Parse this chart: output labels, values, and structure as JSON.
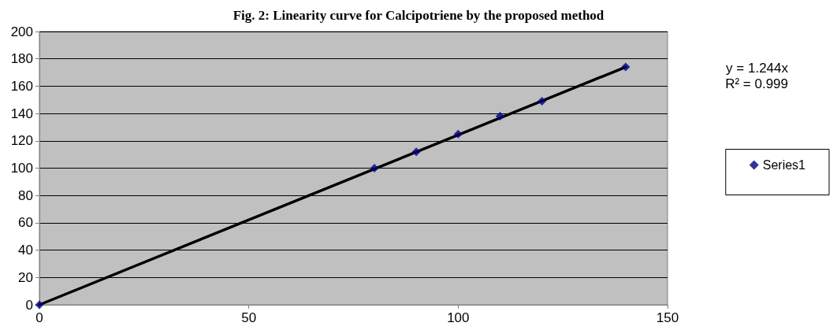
{
  "chart_data": {
    "type": "scatter",
    "title": "Fig. 2: Linearity curve for Calcipotriene by the proposed method",
    "series": [
      {
        "name": "Series1",
        "color": "#000080",
        "marker": "diamond",
        "x": [
          0,
          80,
          90,
          100,
          110,
          120,
          140
        ],
        "values": [
          0,
          100,
          112,
          125,
          138,
          149,
          174
        ]
      },
      {
        "type": "line",
        "color": "#000000",
        "marker": "none",
        "x": [
          0,
          140
        ],
        "values": [
          0,
          174
        ]
      }
    ],
    "xlim": [
      0,
      150
    ],
    "xticks": [
      0,
      50,
      100,
      150
    ],
    "ylim": [
      0,
      200
    ],
    "yticks": [
      0,
      20,
      40,
      60,
      80,
      100,
      120,
      140,
      160,
      180,
      200
    ],
    "grid": "y",
    "legend": "right",
    "annotations": [
      "y = 1.244x",
      "R² = 0.999"
    ]
  }
}
